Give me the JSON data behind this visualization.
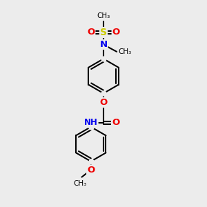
{
  "bg_color": "#ececec",
  "atom_colors": {
    "C": "#000000",
    "H": "#606060",
    "N": "#0000ee",
    "O": "#ee0000",
    "S": "#cccc00"
  },
  "bond_color": "#000000",
  "line_width": 1.5,
  "figsize": [
    3.0,
    3.0
  ],
  "dpi": 100,
  "xlim": [
    0,
    10
  ],
  "ylim": [
    0,
    10
  ]
}
